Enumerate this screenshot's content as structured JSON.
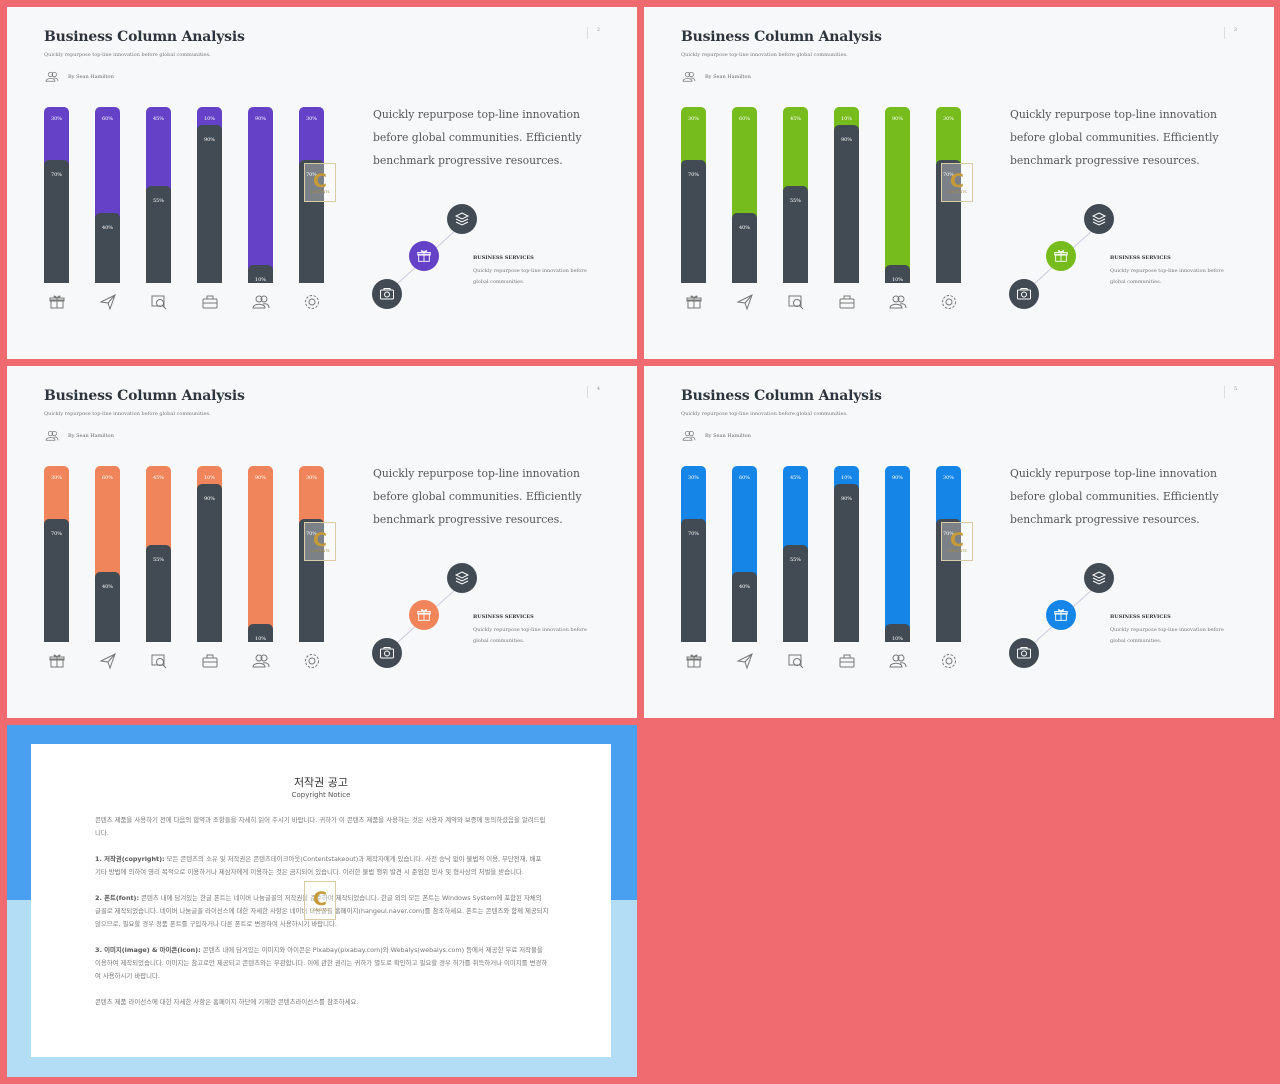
{
  "slides": [
    {
      "title": "Business Column Analysis",
      "subtitle": "Quickly repurpose top-line innovation before global communities.",
      "author": "By Sean Hamilton",
      "page": "2",
      "accent": "#6441c6"
    },
    {
      "title": "Business Column Analysis",
      "subtitle": "Quickly repurpose top-line innovation before global communities.",
      "author": "By Sean Hamilton",
      "page": "3",
      "accent": "#76bc1c"
    },
    {
      "title": "Business Column Analysis",
      "subtitle": "Quickly repurpose top-line innovation before global communities.",
      "author": "By Sean Hamilton",
      "page": "4",
      "accent": "#f0845a"
    },
    {
      "title": "Business Column Analysis",
      "subtitle": "Quickly repurpose top-line innovation before global communities.",
      "author": "By Sean Hamilton",
      "page": "5",
      "accent": "#1585e8"
    }
  ],
  "bars": [
    {
      "top_label": "30%",
      "bottom_label": "70%",
      "bottom_pct": 70,
      "icon": "gift-icon"
    },
    {
      "top_label": "60%",
      "bottom_label": "40%",
      "bottom_pct": 40,
      "icon": "paper-plane-icon"
    },
    {
      "top_label": "45%",
      "bottom_label": "55%",
      "bottom_pct": 55,
      "icon": "photo-icon"
    },
    {
      "top_label": "10%",
      "bottom_label": "90%",
      "bottom_pct": 90,
      "icon": "briefcase-icon"
    },
    {
      "top_label": "90%",
      "bottom_label": "10%",
      "bottom_pct": 10,
      "icon": "users-icon"
    },
    {
      "top_label": "30%",
      "bottom_label": "70%",
      "bottom_pct": 70,
      "icon": "gear-icon"
    }
  ],
  "paragraph": "Quickly repurpose top-line innovation before global communities. Efficiently benchmark progressive resources.",
  "service": {
    "title": "BUSINESS SERVICES",
    "desc": "Quickly repurpose top-line innovation before global communities."
  },
  "logo": {
    "letter": "C",
    "text": "CONTENTS"
  },
  "copyright": {
    "title": "저작권 공고",
    "subtitle": "Copyright Notice",
    "intro": "콘텐츠 제품을 사용하기 전에 다음의 합약과 조항들을 자세히 읽어 주시기 바랍니다. 귀하가 이 콘텐츠 제품을 사용하는 것은 사용자 계약와 보증에 동의하셨음을 알려드립니다.",
    "p1_head": "1. 저작권(copyright):",
    "p1": "모든 콘텐츠의 소유 및 저작권은 콘텐츠테이크아웃(Contentstakeout)과 제작자에게 있습니다. 사전 승낙 없이 불법적 이용, 무단전재, 배포 기타 방법에 의하여 영리 목적으로 이용하거나 제삼자에게 이용하는 것은 금지되어 있습니다. 이러한 불법 행위 발견 시 준엄한 민사 및 형사상의 처벌을 받습니다.",
    "p2_head": "2. 폰트(font):",
    "p2": "콘텐츠 내에 담겨있는 한글 폰트는 네이버 나눔글꼴의 저작권을 준수하여 제작되었습니다. 한글 외의 모든 폰트는 Windows System에 포함된 자체의 글꼴로 제작되었습니다. 네이버 나눔글꼴 라이선스에 대한 자세한 사항은 네이버 나눔글꼴 홈페이지(hangeul.naver.com)를 참조하세요. 폰트는 콘텐츠와 함께 제공되지 않으므로, 필요할 경우 정품 폰트를 구입하거나 다른 폰트로 변경하여 사용하시기 바랍니다.",
    "p3_head": "3. 이미지(image) & 아이콘(icon):",
    "p3": "콘텐츠 내에 담겨있는 이미지와 아이콘은 Pixabay(pixabay.com)와 Webalys(webalys.com) 등에서 제공한 무료 저작물을 이용하여 제작되었습니다. 이미지는 참고로만 제공되고 콘텐츠와는 무관합니다. 이에 관한 권리는 귀하가 별도로 확인하고 필요할 경우 허가를 취득하거나 이미지를 변경하여 사용하시기 바랍니다.",
    "outro": "콘텐츠 제품 라이선스에 대한 자세한 사항은 홈페이지 하단에 기재한 콘텐츠라이선스를 참조하세요."
  }
}
